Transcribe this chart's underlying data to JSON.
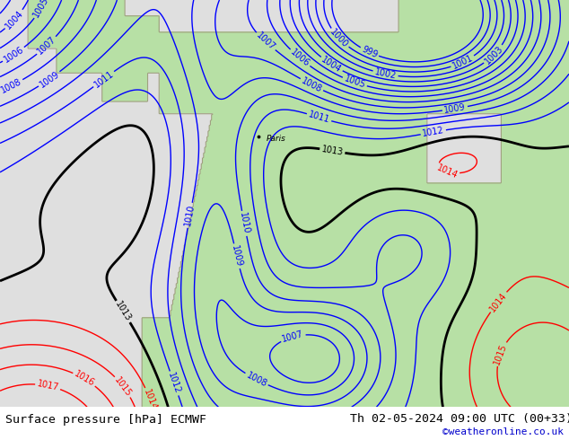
{
  "title_left": "Surface pressure [hPa] ECMWF",
  "title_right": "Th 02-05-2024 09:00 UTC (00+33)",
  "watermark": "©weatheronline.co.uk",
  "watermark_color": "#0000cc",
  "contour_color_blue": "#0000ff",
  "contour_color_black": "#000000",
  "contour_color_red": "#ff0000",
  "label_fontsize": 7.0,
  "footer_fontsize": 9.5,
  "sea_color": [
    0.878,
    0.878,
    0.878,
    1.0
  ],
  "land_color": [
    0.72,
    0.88,
    0.65,
    1.0
  ],
  "coast_color": "#a0a080",
  "figsize": [
    6.34,
    4.9
  ],
  "dpi": 100
}
